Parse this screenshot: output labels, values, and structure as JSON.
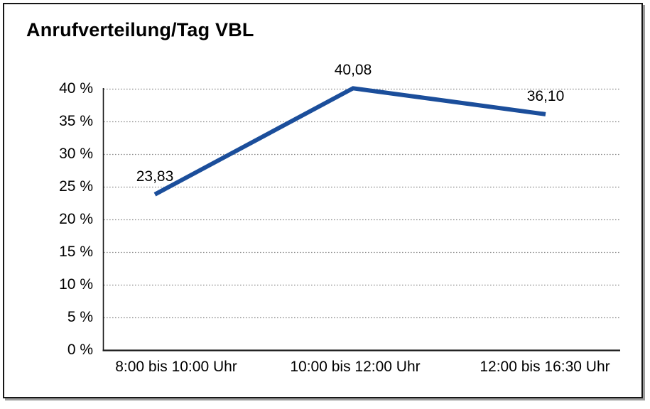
{
  "chart_data": {
    "type": "line",
    "title": "Anrufverteilung/Tag VBL",
    "categories": [
      "8:00 bis 10:00 Uhr",
      "10:00 bis 12:00 Uhr",
      "12:00 bis 16:30 Uhr"
    ],
    "values": [
      23.83,
      40.08,
      36.1
    ],
    "value_labels": [
      "23,83",
      "40,08",
      "36,10"
    ],
    "ylim": [
      0,
      40
    ],
    "ytick_step": 5,
    "ytick_values": [
      0,
      5,
      10,
      15,
      20,
      25,
      30,
      35,
      40
    ],
    "ytick_labels": [
      "0 %",
      "5 %",
      "10 %",
      "15 %",
      "20 %",
      "25 %",
      "30 %",
      "35 %",
      "40 %"
    ],
    "xlabel": "",
    "ylabel": "",
    "legend": "none",
    "grid": "horizontal-dotted",
    "colors": {
      "line": "#1b4e9b",
      "gridline": "#8a8a8a",
      "axis": "#1a1a1a",
      "frame_border": "#161616",
      "frame_shadow": "#9c9c9c",
      "text": "#000000",
      "background": "#ffffff"
    }
  }
}
